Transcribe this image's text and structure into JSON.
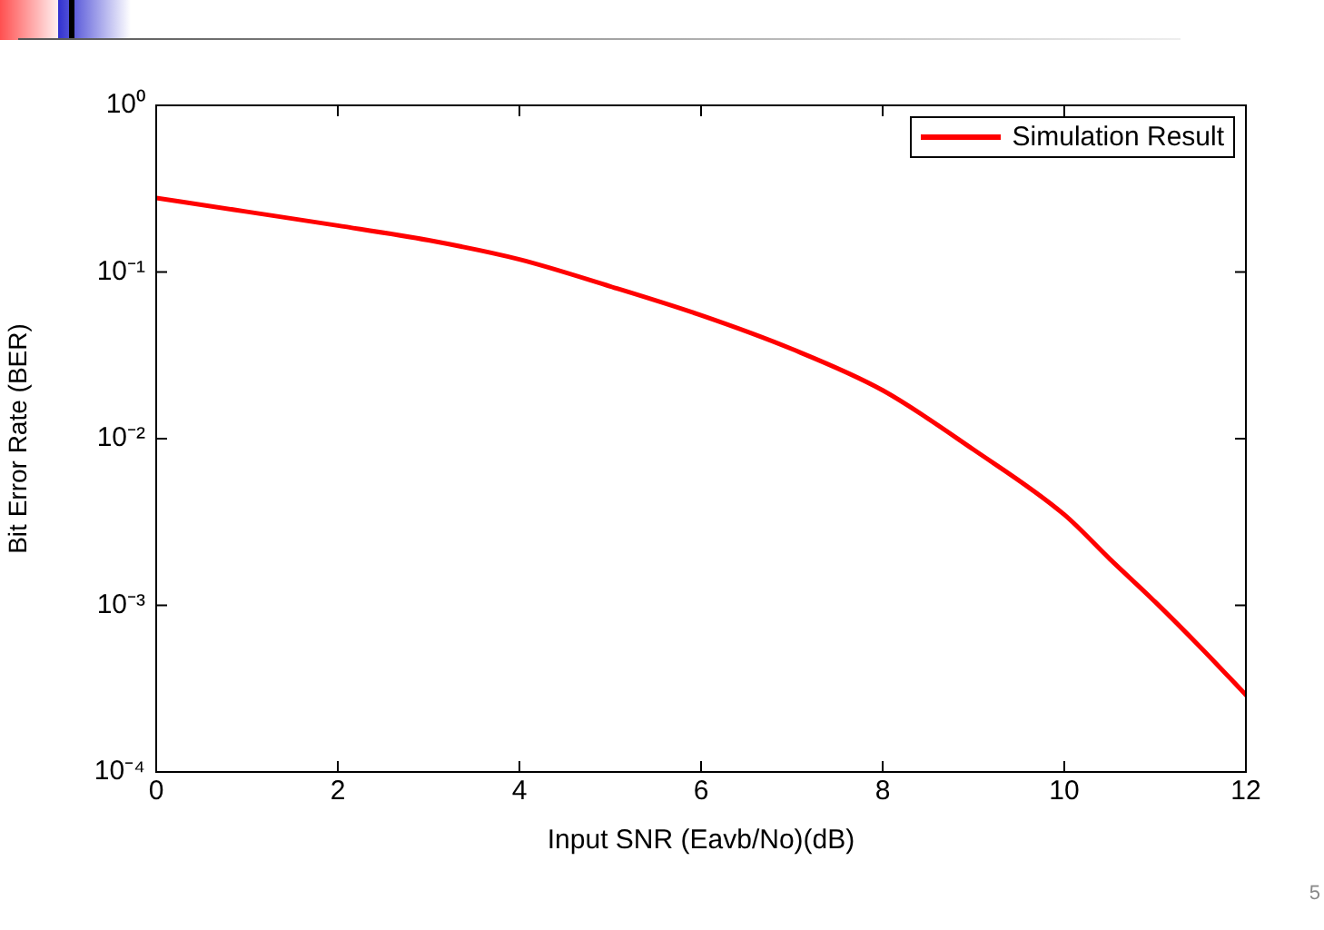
{
  "chart_data": {
    "type": "line",
    "xlabel": "Input SNR (Eavb/No)(dB)",
    "ylabel": "Bit Error Rate (BER)",
    "x": [
      0,
      1,
      2,
      3,
      4,
      5,
      6,
      7,
      8,
      9,
      10,
      10.5,
      11,
      11.5,
      12
    ],
    "series": [
      {
        "name": "Simulation Result",
        "color": "#ff0000",
        "values": [
          0.278,
          0.23,
          0.19,
          0.155,
          0.119,
          0.082,
          0.055,
          0.0345,
          0.0195,
          0.0086,
          0.0035,
          0.0019,
          0.00105,
          0.00056,
          0.00029
        ]
      }
    ],
    "log": "y",
    "xlim": [
      0,
      12
    ],
    "xticks": [
      0,
      2,
      4,
      6,
      8,
      10,
      12
    ],
    "ylim": [
      0.0001,
      1
    ],
    "yticks": [
      {
        "value": 0.0001,
        "label": "10⁻⁴"
      },
      {
        "value": 0.001,
        "label": "10⁻³"
      },
      {
        "value": 0.01,
        "label": "10⁻²"
      },
      {
        "value": 0.1,
        "label": "10⁻¹"
      },
      {
        "value": 1,
        "label": "10⁰"
      }
    ],
    "grid": false,
    "legend": "top right",
    "marker": "none",
    "line_style": "solid",
    "annotations": [
      "5"
    ]
  }
}
